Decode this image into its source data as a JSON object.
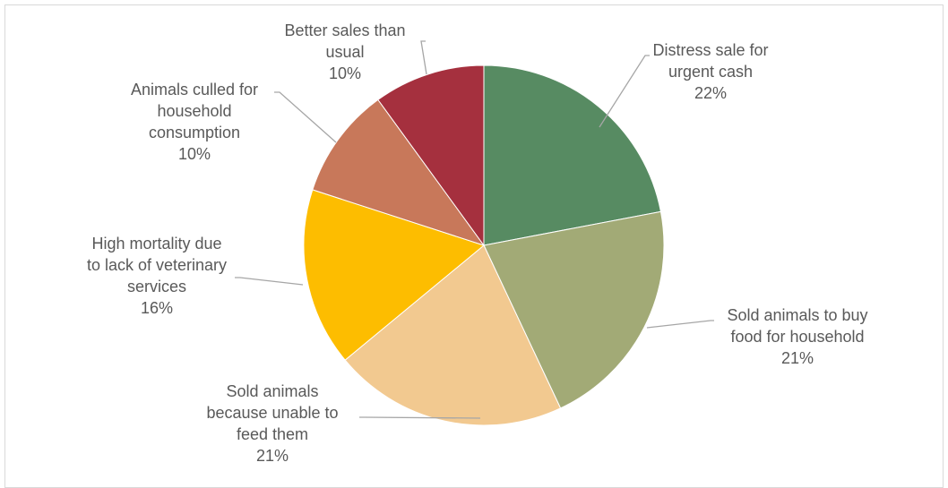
{
  "chart_data": {
    "type": "pie",
    "title": "",
    "start_angle_deg": 0,
    "direction": "clockwise",
    "slices": [
      {
        "name": "Distress sale for urgent cash",
        "label_lines": [
          "Distress sale for",
          "urgent cash"
        ],
        "value": 22,
        "value_label": "22%",
        "color": "#578b62"
      },
      {
        "name": "Sold animals to buy food for household",
        "label_lines": [
          "Sold animals to buy",
          "food for household"
        ],
        "value": 21,
        "value_label": "21%",
        "color": "#a2aa76"
      },
      {
        "name": "Sold animals because unable to feed them",
        "label_lines": [
          "Sold animals",
          "because unable to",
          "feed them"
        ],
        "value": 21,
        "value_label": "21%",
        "color": "#f2c990"
      },
      {
        "name": "High mortality due to lack of veterinary services",
        "label_lines": [
          "High mortality due",
          "to lack of veterinary",
          "services"
        ],
        "value": 16,
        "value_label": "16%",
        "color": "#fdbd00"
      },
      {
        "name": "Animals culled for household consumption",
        "label_lines": [
          "Animals culled for",
          "household",
          "consumption"
        ],
        "value": 10,
        "value_label": "10%",
        "color": "#c8785a"
      },
      {
        "name": "Better sales than usual",
        "label_lines": [
          "Better sales than",
          "usual"
        ],
        "value": 10,
        "value_label": "10%",
        "color": "#a5303e"
      }
    ]
  }
}
